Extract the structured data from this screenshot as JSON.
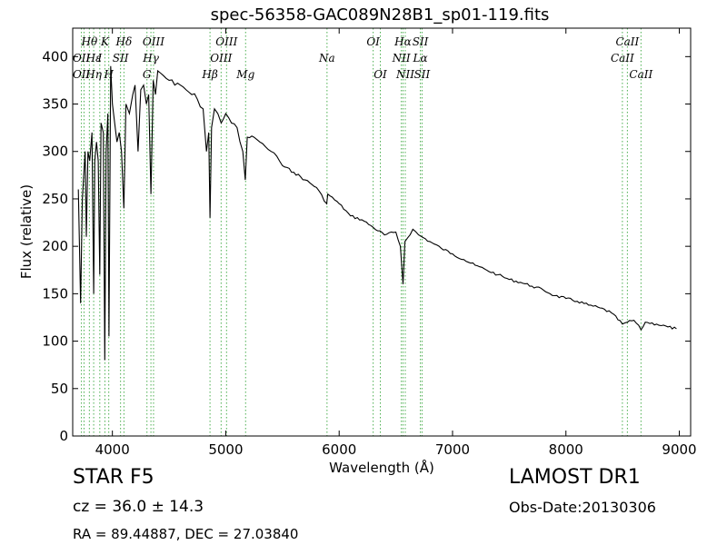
{
  "chart_data": {
    "type": "line",
    "title": "spec-56358-GAC089N28B1_sp01-119.fits",
    "xlabel": "Wavelength (Å)",
    "ylabel": "Flux (relative)",
    "xlim": [
      3650,
      9100
    ],
    "ylim": [
      0,
      430
    ],
    "xticks": [
      4000,
      5000,
      6000,
      7000,
      8000,
      9000
    ],
    "yticks": [
      0,
      50,
      100,
      150,
      200,
      250,
      300,
      350,
      400
    ],
    "grid": false,
    "series": [
      {
        "color": "#000000",
        "x": [
          3700,
          3720,
          3735,
          3750,
          3760,
          3770,
          3785,
          3800,
          3820,
          3835,
          3845,
          3860,
          3875,
          3889,
          3900,
          3920,
          3933,
          3945,
          3960,
          3970,
          3985,
          4000,
          4020,
          4040,
          4060,
          4080,
          4101,
          4120,
          4150,
          4180,
          4200,
          4226,
          4250,
          4275,
          4300,
          4320,
          4340,
          4360,
          4380,
          4400,
          4450,
          4500,
          4550,
          4600,
          4650,
          4700,
          4750,
          4800,
          4830,
          4850,
          4861,
          4875,
          4900,
          4930,
          4960,
          5000,
          5050,
          5100,
          5150,
          5172,
          5190,
          5250,
          5300,
          5350,
          5400,
          5450,
          5500,
          5600,
          5700,
          5800,
          5890,
          5900,
          6000,
          6100,
          6200,
          6300,
          6400,
          6500,
          6540,
          6563,
          6580,
          6650,
          6700,
          6800,
          6900,
          7000,
          7100,
          7200,
          7300,
          7400,
          7500,
          7600,
          7700,
          7800,
          7900,
          8000,
          8100,
          8200,
          8300,
          8400,
          8498,
          8542,
          8600,
          8662,
          8700,
          8800,
          8900,
          8975
        ],
        "y": [
          260,
          140,
          250,
          280,
          300,
          210,
          300,
          290,
          320,
          150,
          290,
          310,
          290,
          170,
          330,
          320,
          80,
          300,
          340,
          105,
          390,
          350,
          330,
          310,
          320,
          300,
          240,
          350,
          340,
          360,
          370,
          300,
          365,
          370,
          350,
          360,
          255,
          375,
          360,
          385,
          380,
          375,
          370,
          370,
          365,
          360,
          355,
          345,
          300,
          320,
          230,
          325,
          345,
          340,
          330,
          340,
          330,
          325,
          300,
          270,
          315,
          315,
          310,
          305,
          300,
          295,
          285,
          278,
          270,
          262,
          245,
          255,
          245,
          232,
          228,
          220,
          212,
          215,
          200,
          160,
          205,
          218,
          212,
          205,
          198,
          192,
          186,
          180,
          175,
          170,
          165,
          162,
          158,
          154,
          148,
          145,
          142,
          138,
          135,
          130,
          118,
          120,
          122,
          112,
          120,
          118,
          115,
          113
        ]
      }
    ],
    "line_labels": [
      {
        "text": "Hθ",
        "x": 3797,
        "row": 1,
        "color": "#4caf50"
      },
      {
        "text": "K",
        "x": 3934,
        "row": 1,
        "color": "#4caf50"
      },
      {
        "text": "Hδ",
        "x": 4102,
        "row": 1,
        "color": "#4caf50"
      },
      {
        "text": "OIII",
        "x": 4363,
        "row": 1,
        "color": "#4caf50"
      },
      {
        "text": "OIII",
        "x": 5007,
        "row": 1,
        "color": "#4caf50"
      },
      {
        "text": "OI",
        "x": 6300,
        "row": 1,
        "color": "#4caf50"
      },
      {
        "text": "Hα",
        "x": 6563,
        "row": 1,
        "color": "#4caf50"
      },
      {
        "text": "SII",
        "x": 6716,
        "row": 1,
        "color": "#4caf50"
      },
      {
        "text": "CaII",
        "x": 8542,
        "row": 1,
        "color": "#4caf50"
      },
      {
        "text": "OII",
        "x": 3727,
        "row": 2,
        "color": "#4caf50"
      },
      {
        "text": "Hε",
        "x": 3835,
        "row": 2,
        "color": "#4caf50"
      },
      {
        "text": "SII",
        "x": 4072,
        "row": 2,
        "color": "#4caf50"
      },
      {
        "text": "Hγ",
        "x": 4340,
        "row": 2,
        "color": "#4caf50"
      },
      {
        "text": "OIII",
        "x": 4959,
        "row": 2,
        "color": "#4caf50"
      },
      {
        "text": "Na",
        "x": 5893,
        "row": 2,
        "color": "#4caf50"
      },
      {
        "text": "NII",
        "x": 6548,
        "row": 2,
        "color": "#4caf50"
      },
      {
        "text": "Lα",
        "x": 6716,
        "row": 2,
        "color": "#4caf50"
      },
      {
        "text": "CaII",
        "x": 8498,
        "row": 2,
        "color": "#4caf50"
      },
      {
        "text": "Hη",
        "x": 3835,
        "row": 3,
        "color": "#4caf50"
      },
      {
        "text": "OII",
        "x": 3727,
        "row": 3,
        "color": "#4caf50"
      },
      {
        "text": "H",
        "x": 3968,
        "row": 3,
        "color": "#4caf50"
      },
      {
        "text": "G",
        "x": 4305,
        "row": 3,
        "color": "#4caf50"
      },
      {
        "text": "Hβ",
        "x": 4861,
        "row": 3,
        "color": "#4caf50"
      },
      {
        "text": "Mg",
        "x": 5175,
        "row": 3,
        "color": "#4caf50"
      },
      {
        "text": "OI",
        "x": 6363,
        "row": 3,
        "color": "#4caf50"
      },
      {
        "text": "NII",
        "x": 6583,
        "row": 3,
        "color": "#4caf50"
      },
      {
        "text": "SII",
        "x": 6731,
        "row": 3,
        "color": "#4caf50"
      },
      {
        "text": "CaII",
        "x": 8662,
        "row": 3,
        "color": "#4caf50"
      },
      {
        "text": "I",
        "x": 3889,
        "row": 2,
        "color": "#4caf50"
      }
    ],
    "line_markers": [
      3727,
      3750,
      3797,
      3835,
      3889,
      3934,
      3968,
      4072,
      4102,
      4305,
      4340,
      4363,
      4861,
      4959,
      5007,
      5175,
      5893,
      6300,
      6363,
      6548,
      6563,
      6583,
      6716,
      6731,
      8498,
      8542,
      8662
    ]
  },
  "footer": {
    "class_label": "STAR   F5",
    "survey": "LAMOST DR1",
    "cz": "cz = 36.0  ± 14.3",
    "obs_date": "Obs-Date:20130306",
    "radec": "RA = 89.44887, DEC = 27.03840"
  }
}
